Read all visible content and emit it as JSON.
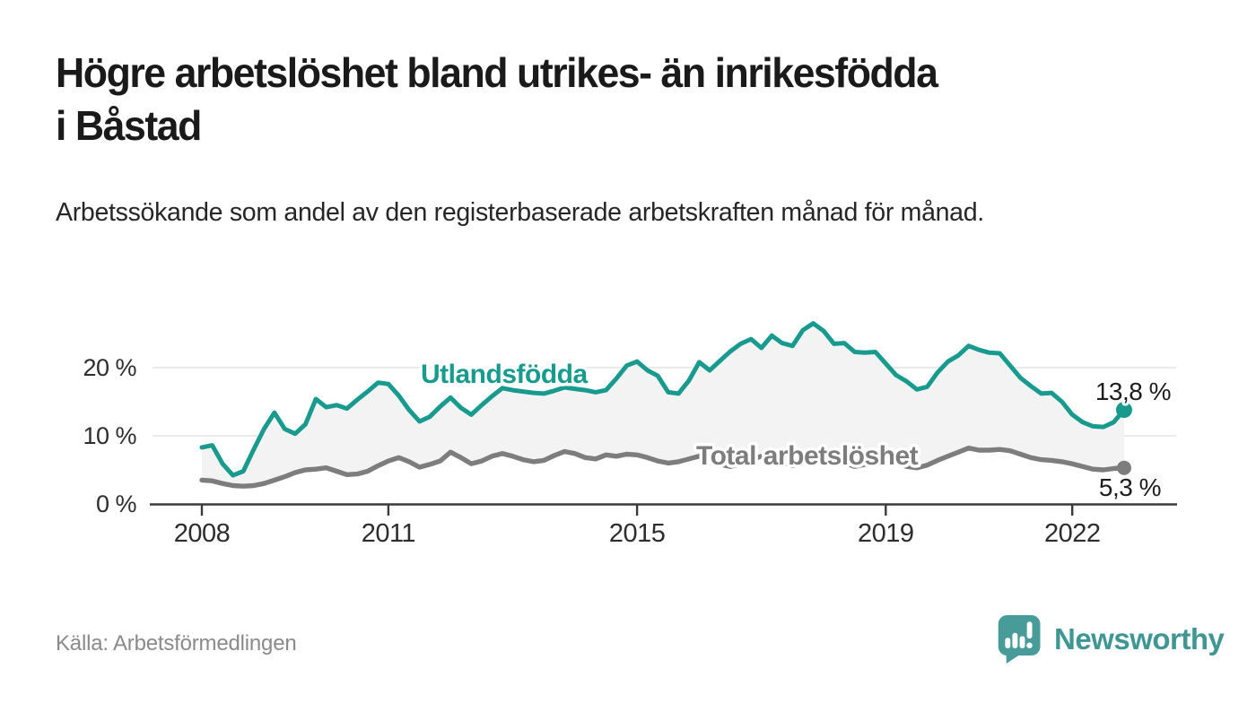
{
  "page": {
    "title": "Högre arbetslöshet bland utrikes- än inrikesfödda i Båstad",
    "subtitle": "Arbetssökande som andel av den registerbaserade arbetskraften månad för månad.",
    "source": "Källa: Arbetsförmedlingen",
    "brand": "Newsworthy"
  },
  "colors": {
    "accent_teal": "#189b8e",
    "line_gray": "#7d7d7d",
    "area_fill": "#f3f3f3",
    "gridline": "#e4e4e4",
    "axis": "#3a3a3a",
    "tick_label": "#2d2d2d",
    "value_label": "#1d1d1d",
    "logo_teal": "#479c99"
  },
  "chart_data": {
    "type": "line",
    "title": "",
    "xlabel": "",
    "ylabel": "",
    "unit": "%",
    "x_start": 2008.0,
    "x_step_years": 0.16667,
    "x_ticks": [
      2008,
      2011,
      2015,
      2019,
      2022
    ],
    "x_tick_labels": [
      "2008",
      "2011",
      "2015",
      "2019",
      "2022"
    ],
    "y_ticks": [
      0,
      10,
      20
    ],
    "y_tick_labels": [
      "0 %",
      "10 %",
      "20 %"
    ],
    "x_range": [
      2008.0,
      2022.83
    ],
    "y_range": [
      0,
      27.5
    ],
    "grid": "horizontal-only",
    "legend_position": "inline-labels-on-chart",
    "area_fill_between_series": true,
    "series": [
      {
        "name": "Utlandsfödda",
        "color": "#189b8e",
        "end_label": "13,8 %",
        "end_value": 13.8,
        "values": [
          8.3,
          8.6,
          5.9,
          4.2,
          4.8,
          8.0,
          11.0,
          13.4,
          11.0,
          10.3,
          11.7,
          15.4,
          14.2,
          14.5,
          14.0,
          15.3,
          16.5,
          17.8,
          17.6,
          15.9,
          13.8,
          12.1,
          12.8,
          14.3,
          15.6,
          14.1,
          13.1,
          14.5,
          15.8,
          17.0,
          16.7,
          16.5,
          16.3,
          16.2,
          16.6,
          17.1,
          16.9,
          16.7,
          16.4,
          16.7,
          18.4,
          20.3,
          20.9,
          19.6,
          18.8,
          16.4,
          16.2,
          18.1,
          20.8,
          19.6,
          21.0,
          22.4,
          23.5,
          24.2,
          22.9,
          24.7,
          23.6,
          23.2,
          25.5,
          26.5,
          25.4,
          23.5,
          23.6,
          22.3,
          22.2,
          22.3,
          20.6,
          18.9,
          18.0,
          16.8,
          17.2,
          19.3,
          20.9,
          21.8,
          23.2,
          22.6,
          22.2,
          22.1,
          20.3,
          18.5,
          17.3,
          16.2,
          16.3,
          15.0,
          13.1,
          12.0,
          11.4,
          11.3,
          12.0,
          13.8
        ]
      },
      {
        "name": "Total arbetslöshet",
        "color": "#7d7d7d",
        "end_label": "5,3 %",
        "end_value": 5.3,
        "values": [
          3.5,
          3.4,
          3.0,
          2.7,
          2.6,
          2.7,
          3.0,
          3.5,
          4.0,
          4.6,
          5.0,
          5.1,
          5.3,
          4.8,
          4.3,
          4.4,
          4.8,
          5.6,
          6.3,
          6.8,
          6.2,
          5.4,
          5.8,
          6.3,
          7.6,
          6.8,
          5.9,
          6.3,
          7.0,
          7.4,
          7.0,
          6.5,
          6.2,
          6.4,
          7.1,
          7.7,
          7.4,
          6.8,
          6.6,
          7.2,
          7.0,
          7.3,
          7.2,
          6.8,
          6.3,
          6.0,
          6.2,
          6.6,
          7.0,
          6.4,
          5.8,
          5.5,
          5.9,
          6.5,
          7.0,
          6.6,
          6.1,
          5.6,
          6.0,
          6.8,
          7.2,
          6.7,
          6.0,
          5.5,
          5.8,
          6.4,
          6.6,
          6.1,
          5.5,
          5.3,
          5.7,
          6.4,
          7.0,
          7.6,
          8.2,
          7.9,
          7.9,
          8.0,
          7.8,
          7.3,
          6.8,
          6.5,
          6.4,
          6.2,
          5.9,
          5.5,
          5.1,
          5.0,
          5.2,
          5.3
        ]
      }
    ]
  }
}
